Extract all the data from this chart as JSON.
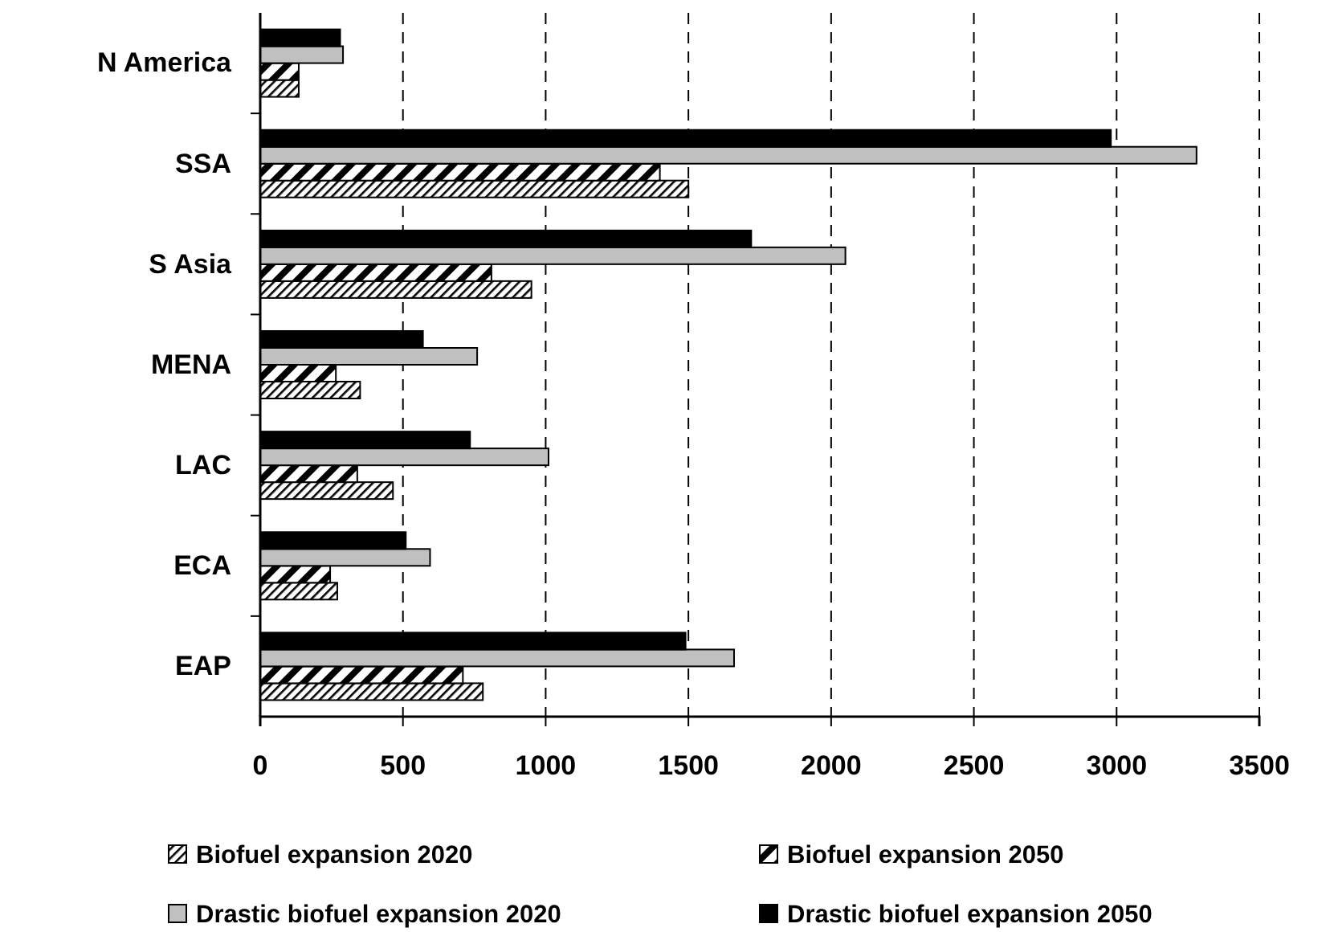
{
  "chart_data": {
    "type": "bar",
    "orientation": "horizontal",
    "categories": [
      "N America",
      "SSA",
      "S Asia",
      "MENA",
      "LAC",
      "ECA",
      "EAP"
    ],
    "series": [
      {
        "name": "Biofuel expansion 2020",
        "color": "#000000",
        "values": [
          135,
          1500,
          950,
          350,
          465,
          270,
          780
        ]
      },
      {
        "name": "Biofuel expansion 2050",
        "color": "#000000",
        "values": [
          135,
          1400,
          810,
          265,
          340,
          245,
          710
        ]
      },
      {
        "name": "Drastic biofuel expansion 2020",
        "color": "#c0c0c0",
        "values": [
          290,
          3280,
          2050,
          760,
          1010,
          595,
          1660
        ]
      },
      {
        "name": "Drastic biofuel expansion 2050",
        "color": "#000000",
        "values": [
          280,
          2980,
          1720,
          570,
          735,
          510,
          1490
        ]
      }
    ],
    "xlim": [
      0,
      3500
    ],
    "xticks": [
      0,
      500,
      1000,
      1500,
      2000,
      2500,
      3000,
      3500
    ],
    "grid": "x",
    "legend": "bottom"
  }
}
